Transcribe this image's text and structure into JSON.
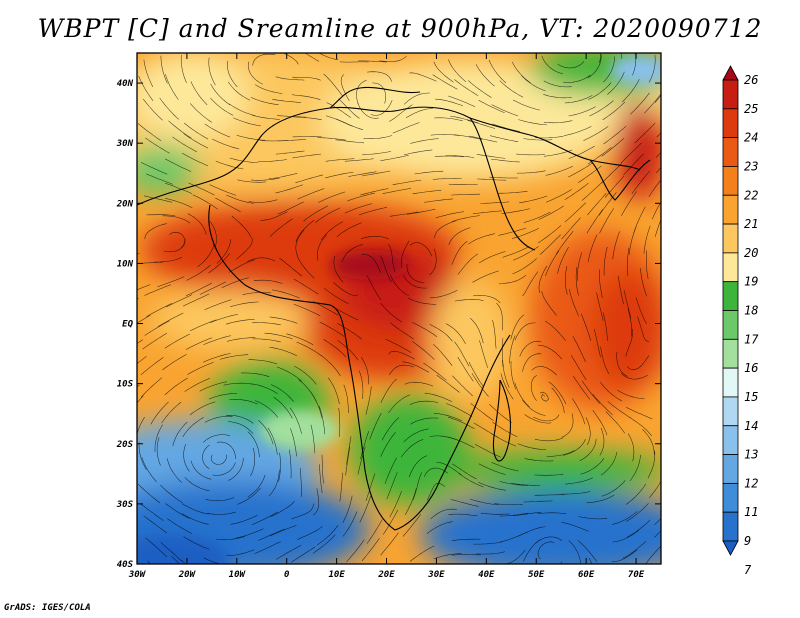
{
  "title": "WBPT [C] and Sreamline at 900hPa, VT: 2020090712",
  "footer": "GrADS: IGES/COLA",
  "map": {
    "lon_range": [
      -30,
      75
    ],
    "lat_range": [
      -40,
      45
    ],
    "lon_ticks": [
      "30W",
      "20W",
      "10W",
      "0",
      "10E",
      "20E",
      "30E",
      "40E",
      "50E",
      "60E",
      "70E"
    ],
    "lat_ticks": [
      "40N",
      "30N",
      "20N",
      "10N",
      "EQ",
      "10S",
      "20S",
      "30S",
      "40S"
    ],
    "grid": false,
    "variable": "wet-bulb potential temperature at 900hPa",
    "overlay": "streamlines"
  },
  "colorbar": {
    "labels": [
      "26",
      "25",
      "24",
      "23",
      "22",
      "21",
      "20",
      "19",
      "18",
      "17",
      "16",
      "15",
      "14",
      "13",
      "12",
      "11",
      "9",
      "7"
    ],
    "colors": [
      "#a8071a",
      "#c81d12",
      "#dd3a10",
      "#ea5a13",
      "#f3801b",
      "#f9a431",
      "#fcc75e",
      "#fde89a",
      "#3db53a",
      "#6bc969",
      "#a3e09d",
      "#e2f8f6",
      "#b1d8f3",
      "#8ac0ec",
      "#63a7e3",
      "#3f8cd8",
      "#2672cd",
      "#1a5ec3"
    ]
  }
}
